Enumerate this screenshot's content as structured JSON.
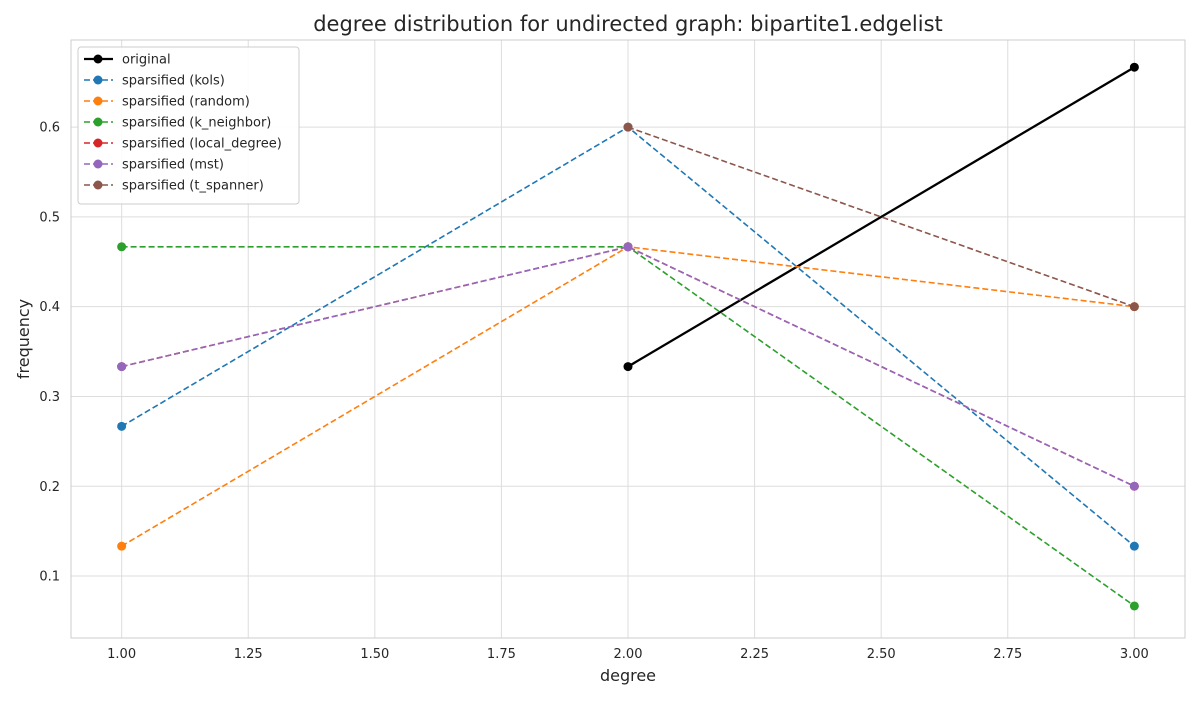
{
  "chart_data": {
    "type": "line",
    "title": "degree distribution for undirected graph: bipartite1.edgelist",
    "xlabel": "degree",
    "ylabel": "frequency",
    "xlim": [
      0.9,
      3.1
    ],
    "ylim": [
      0.031,
      0.697
    ],
    "xticks": [
      "1.00",
      "1.25",
      "1.50",
      "1.75",
      "2.00",
      "2.25",
      "2.50",
      "2.75",
      "3.00"
    ],
    "xtick_values": [
      1.0,
      1.25,
      1.5,
      1.75,
      2.0,
      2.25,
      2.5,
      2.75,
      3.0
    ],
    "yticks": [
      "0.1",
      "0.2",
      "0.3",
      "0.4",
      "0.5",
      "0.6"
    ],
    "ytick_values": [
      0.1,
      0.2,
      0.3,
      0.4,
      0.5,
      0.6
    ],
    "grid": true,
    "legend_position": "top-left",
    "series": [
      {
        "name": "original",
        "color": "#000000",
        "style": "solid",
        "x": [
          2,
          3
        ],
        "y": [
          0.3333,
          0.6667
        ]
      },
      {
        "name": "sparsified (kols)",
        "color": "#1f77b4",
        "style": "dashed",
        "x": [
          1,
          2,
          3
        ],
        "y": [
          0.2667,
          0.6,
          0.1333
        ]
      },
      {
        "name": "sparsified (random)",
        "color": "#ff7f0e",
        "style": "dashed",
        "x": [
          1,
          2,
          3
        ],
        "y": [
          0.1333,
          0.4667,
          0.4
        ]
      },
      {
        "name": "sparsified (k_neighbor)",
        "color": "#2ca02c",
        "style": "dashed",
        "x": [
          1,
          2,
          3
        ],
        "y": [
          0.4667,
          0.4667,
          0.0667
        ]
      },
      {
        "name": "sparsified (local_degree)",
        "color": "#d62728",
        "style": "dashed",
        "x": [
          1,
          2,
          3
        ],
        "y": [
          0.3333,
          0.4667,
          0.2
        ]
      },
      {
        "name": "sparsified (mst)",
        "color": "#9467bd",
        "style": "dashed",
        "x": [
          1,
          2,
          3
        ],
        "y": [
          0.3333,
          0.4667,
          0.2
        ]
      },
      {
        "name": "sparsified (t_spanner)",
        "color": "#8c564b",
        "style": "dashed",
        "x": [
          2,
          3
        ],
        "y": [
          0.6,
          0.4
        ]
      }
    ]
  }
}
